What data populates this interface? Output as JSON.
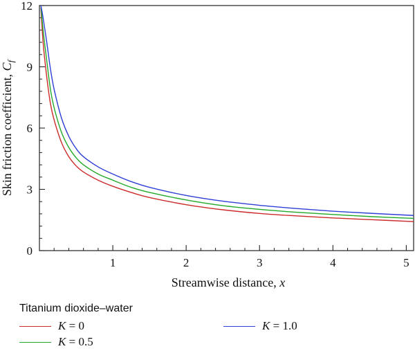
{
  "chart_data": {
    "type": "line",
    "title": "",
    "xlabel": {
      "text": "Streamwise distance, ",
      "var": "x"
    },
    "ylabel": {
      "text": "Skin friction coefficient, ",
      "var": "C",
      "sub": "f"
    },
    "xlim": [
      0.0,
      5.1
    ],
    "ylim": [
      0,
      12
    ],
    "xticks": [
      1,
      2,
      3,
      4,
      5
    ],
    "yticks": [
      0,
      3,
      6,
      9,
      12
    ],
    "legend": {
      "title": "Titanium dioxide–water",
      "placement": "below"
    },
    "series": [
      {
        "name": "K = 0",
        "param": "K",
        "value_label": "0",
        "color": "#cc2a2a",
        "x": [
          0.02,
          0.05,
          0.1,
          0.15,
          0.2,
          0.3,
          0.4,
          0.5,
          0.6,
          0.8,
          1.0,
          1.25,
          1.5,
          2.0,
          2.5,
          3.0,
          3.5,
          4.0,
          4.5,
          5.1
        ],
        "y": [
          11.9,
          10.2,
          8.5,
          7.2,
          6.4,
          5.3,
          4.6,
          4.15,
          3.85,
          3.45,
          3.15,
          2.85,
          2.6,
          2.25,
          2.0,
          1.82,
          1.7,
          1.6,
          1.52,
          1.42
        ]
      },
      {
        "name": "K = 0.5",
        "param": "K",
        "value_label": "0.5",
        "color": "#22a82a",
        "x": [
          0.02,
          0.05,
          0.1,
          0.15,
          0.2,
          0.3,
          0.4,
          0.5,
          0.6,
          0.8,
          1.0,
          1.25,
          1.5,
          2.0,
          2.5,
          3.0,
          3.5,
          4.0,
          4.5,
          5.1
        ],
        "y": [
          12.0,
          10.8,
          9.3,
          7.9,
          7.0,
          5.8,
          5.05,
          4.55,
          4.2,
          3.75,
          3.45,
          3.1,
          2.85,
          2.48,
          2.2,
          2.02,
          1.88,
          1.77,
          1.67,
          1.58
        ]
      },
      {
        "name": "K = 1.0",
        "param": "K",
        "value_label": "1.0",
        "color": "#2e3fd6",
        "x": [
          0.02,
          0.05,
          0.1,
          0.15,
          0.2,
          0.3,
          0.4,
          0.5,
          0.6,
          0.8,
          1.0,
          1.25,
          1.5,
          2.0,
          2.5,
          3.0,
          3.5,
          4.0,
          4.5,
          5.1
        ],
        "y": [
          12.0,
          11.4,
          10.2,
          8.9,
          7.9,
          6.5,
          5.6,
          5.0,
          4.6,
          4.1,
          3.75,
          3.38,
          3.1,
          2.7,
          2.42,
          2.22,
          2.06,
          1.93,
          1.83,
          1.72
        ]
      }
    ]
  }
}
